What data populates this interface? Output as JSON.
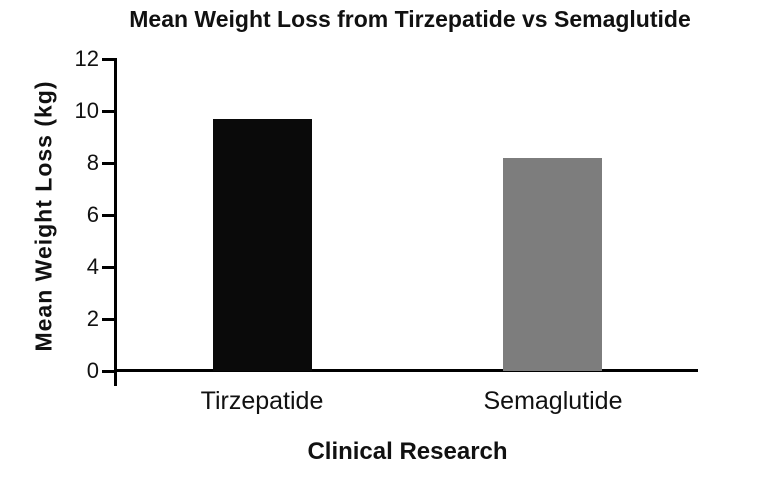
{
  "chart_data": {
    "type": "bar",
    "title": "Mean Weight Loss from Tirzepatide vs Semaglutide",
    "xlabel": "Clinical Research",
    "ylabel": "Mean Weight Loss (kg)",
    "categories": [
      "Tirzepatide",
      "Semaglutide"
    ],
    "values": [
      9.7,
      8.2
    ],
    "ylim": [
      0,
      12
    ],
    "yticks": [
      0,
      2,
      4,
      6,
      8,
      10,
      12
    ],
    "bar_colors": [
      "#0a0a0a",
      "#7d7d7d"
    ],
    "grid": false,
    "legend": "none",
    "background_color": "#ffffff",
    "axis_color": "#000000",
    "text_color": "#111111"
  }
}
